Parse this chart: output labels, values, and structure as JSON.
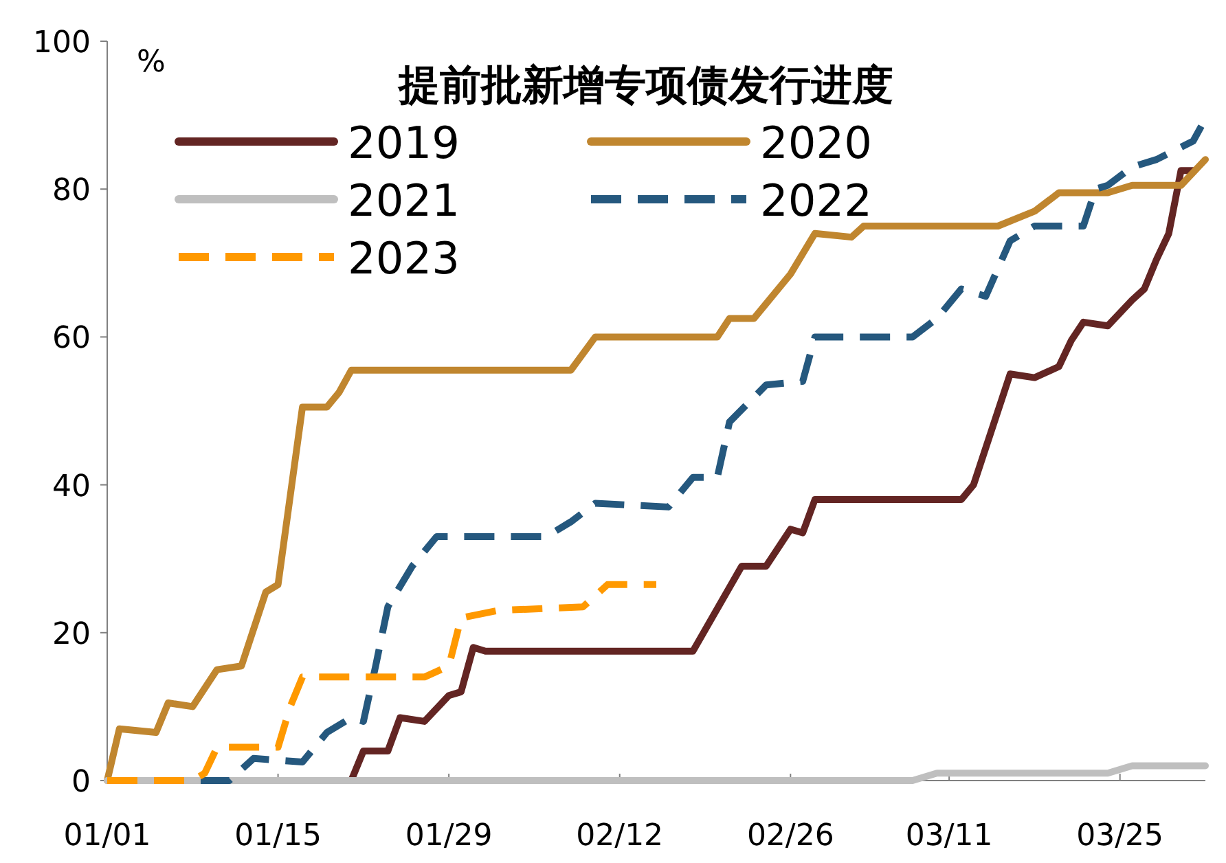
{
  "chart_data": {
    "type": "line",
    "title": "提前批新增专项债发行进度",
    "ylabel": "%",
    "xlim": [
      "--01-01",
      "--04-01"
    ],
    "ylim": [
      0,
      100
    ],
    "xticks": [
      {
        "value": "--01-01",
        "label": "01/01"
      },
      {
        "value": "--01-15",
        "label": "01/15"
      },
      {
        "value": "--01-29",
        "label": "01/29"
      },
      {
        "value": "--02-12",
        "label": "02/12"
      },
      {
        "value": "--02-26",
        "label": "02/26"
      },
      {
        "value": "--03-11",
        "label": "03/11"
      },
      {
        "value": "--03-25",
        "label": "03/25"
      }
    ],
    "yticks": [
      0,
      20,
      40,
      60,
      80,
      100
    ],
    "grid": false,
    "legend": "top",
    "line_style": "solid",
    "series": [
      {
        "name": "2019",
        "color": "#632523",
        "x": [
          "--01-21",
          "--01-22",
          "--01-24",
          "--01-25",
          "--01-27",
          "--01-29",
          "--01-30",
          "--01-31",
          "--02-01",
          "--02-18",
          "--02-22",
          "--02-24",
          "--02-26",
          "--02-27",
          "--02-28",
          "--03-12",
          "--03-13",
          "--03-16",
          "--03-18",
          "--03-20",
          "--03-21",
          "--03-22",
          "--03-24",
          "--03-26",
          "--03-27",
          "--03-28",
          "--03-29",
          "--03-30",
          "--03-31"
        ],
        "values": [
          0,
          4,
          4,
          8.5,
          8,
          11.5,
          12,
          18,
          17.5,
          17.5,
          29,
          29,
          34,
          33.5,
          38,
          38,
          40,
          55,
          54.5,
          56,
          59.5,
          62,
          61.5,
          65,
          66.5,
          70.5,
          74,
          82.5,
          82.5
        ]
      },
      {
        "name": "2020",
        "color": "#c0862f",
        "x": [
          "--01-01",
          "--01-02",
          "--01-05",
          "--01-06",
          "--01-08",
          "--01-10",
          "--01-12",
          "--01-14",
          "--01-15",
          "--01-17",
          "--01-19",
          "--01-20",
          "--01-21",
          "--02-08",
          "--02-10",
          "--02-20",
          "--02-21",
          "--02-23",
          "--02-26",
          "--02-28",
          "--03-03",
          "--03-04",
          "--03-15",
          "--03-18",
          "--03-20",
          "--03-24",
          "--03-26",
          "--03-30",
          "--04-01"
        ],
        "values": [
          0,
          7,
          6.5,
          10.5,
          10,
          15,
          15.5,
          25.5,
          26.5,
          50.5,
          50.5,
          52.5,
          55.5,
          55.5,
          60,
          60,
          62.5,
          62.5,
          68.5,
          74,
          73.5,
          75,
          75,
          77,
          79.5,
          79.5,
          80.5,
          80.5,
          84
        ]
      },
      {
        "name": "2021",
        "color": "#bfbfbf",
        "x": [
          "--01-01",
          "--03-08",
          "--03-10",
          "--03-24",
          "--03-26",
          "--04-01"
        ],
        "values": [
          0,
          0,
          1,
          1,
          2,
          2
        ]
      },
      {
        "name": "2022",
        "color": "#25587e",
        "line_style": "dashed",
        "x": [
          "--01-01",
          "--01-11",
          "--01-13",
          "--01-17",
          "--01-19",
          "--01-21",
          "--01-22",
          "--01-23",
          "--01-24",
          "--01-26",
          "--01-28",
          "--02-06",
          "--02-08",
          "--02-10",
          "--02-16",
          "--02-18",
          "--02-20",
          "--02-21",
          "--02-24",
          "--02-27",
          "--02-28",
          "--03-08",
          "--03-10",
          "--03-12",
          "--03-14",
          "--03-16",
          "--03-18",
          "--03-22",
          "--03-23",
          "--03-24",
          "--03-26",
          "--03-28",
          "--03-31",
          "--04-01"
        ],
        "values": [
          0,
          0,
          3,
          2.5,
          6.5,
          8.5,
          8,
          15.5,
          23.5,
          29,
          33,
          33,
          35,
          37.5,
          37,
          41,
          41,
          48.5,
          53.5,
          54,
          60,
          60,
          62.5,
          66.5,
          65.5,
          73,
          75,
          75,
          80,
          80.5,
          83,
          84,
          86.5,
          89.5
        ]
      },
      {
        "name": "2023",
        "color": "#ff9900",
        "line_style": "dashed",
        "x": [
          "--01-01",
          "--01-08",
          "--01-09",
          "--01-10",
          "--01-15",
          "--01-16",
          "--01-17",
          "--01-27",
          "--01-29",
          "--01-30",
          "--02-02",
          "--02-09",
          "--02-11",
          "--02-15"
        ],
        "values": [
          0,
          0,
          1,
          4.5,
          4.5,
          10,
          14,
          14,
          15.5,
          22,
          23,
          23.5,
          26.5,
          26.5
        ]
      }
    ]
  }
}
